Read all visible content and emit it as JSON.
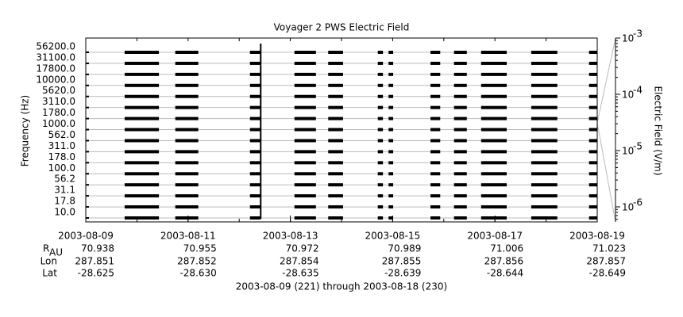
{
  "chart_data": {
    "type": "stack-plot",
    "title": "Voyager 2 PWS Electric Field",
    "ylabel": "Frequency (Hz)",
    "y2label": "Electric Field (V/m)",
    "channels": [
      "56200.0",
      "31100.0",
      "17800.0",
      "10000.0",
      "5620.0",
      "3110.0",
      "1780.0",
      "1000.0",
      "562.0",
      "311.0",
      "178.0",
      "100.0",
      "56.2",
      "31.1",
      "17.8",
      "10.0"
    ],
    "xlim": [
      221,
      231
    ],
    "xticks": [
      {
        "value": 221,
        "label": "2003-08-09"
      },
      {
        "value": 223,
        "label": "2003-08-11"
      },
      {
        "value": 225,
        "label": "2003-08-13"
      },
      {
        "value": 227,
        "label": "2003-08-15"
      },
      {
        "value": 229,
        "label": "2003-08-17"
      },
      {
        "value": 231,
        "label": "2003-08-19"
      }
    ],
    "segments": [
      [
        221.76,
        222.43
      ],
      [
        222.75,
        223.2
      ],
      [
        224.21,
        224.42
      ],
      [
        225.08,
        225.5
      ],
      [
        225.74,
        226.03
      ],
      [
        226.71,
        226.81
      ],
      [
        226.92,
        227.01
      ],
      [
        227.74,
        227.93
      ],
      [
        228.2,
        228.45
      ],
      [
        228.73,
        229.23
      ],
      [
        229.71,
        230.22
      ],
      [
        230.84,
        231.0
      ]
    ],
    "y2scale": "log",
    "y2lim": [
      5.4e-07,
      0.001
    ],
    "y2ticks": [
      {
        "value": 0.001,
        "label": "10",
        "exponent": "-3"
      },
      {
        "value": 0.0001,
        "label": "10",
        "exponent": "-4"
      },
      {
        "value": 1e-05,
        "label": "10",
        "exponent": "-5"
      },
      {
        "value": 1e-06,
        "label": "10",
        "exponent": "-6"
      }
    ],
    "ephemeris": [
      {
        "name": "R",
        "sub": "AU",
        "values": [
          "70.938",
          "70.955",
          "70.972",
          "70.989",
          "71.006",
          "71.023"
        ]
      },
      {
        "name": "Lon",
        "values": [
          "287.851",
          "287.852",
          "287.854",
          "287.855",
          "287.856",
          "287.857"
        ]
      },
      {
        "name": "Lat",
        "values": [
          "-28.625",
          "-28.630",
          "-28.635",
          "-28.639",
          "-28.644",
          "-28.649"
        ]
      }
    ],
    "footer": "2003-08-09 (221) through 2003-08-18 (230)"
  }
}
